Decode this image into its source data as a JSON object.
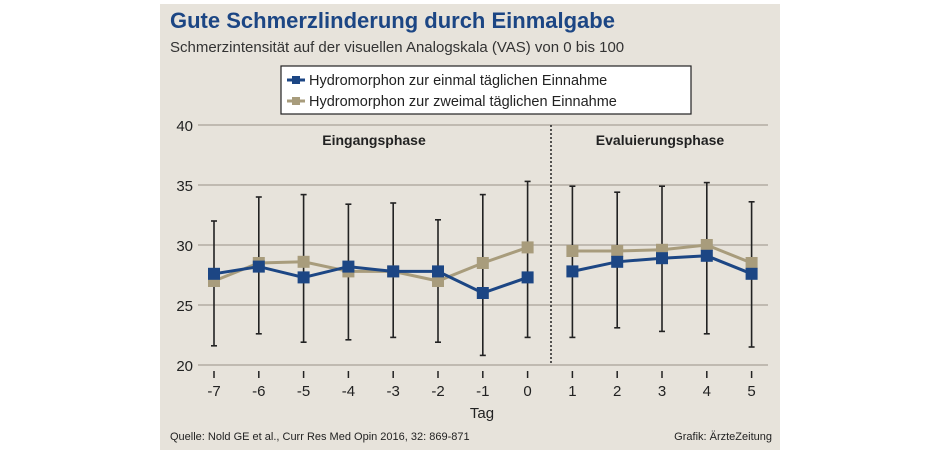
{
  "chart_data": {
    "type": "line",
    "title": "Gute Schmerzlinderung durch Einmalgabe",
    "subtitle": "Schmerzintensität auf der visuellen Analogskala (VAS) von 0 bis 100",
    "xlabel": "Tag",
    "ylabel": "",
    "x": [
      -7,
      -6,
      -5,
      -4,
      -3,
      -2,
      -1,
      0,
      1,
      2,
      3,
      4,
      5
    ],
    "x_tick_labels": [
      "-7",
      "-6",
      "-5",
      "-4",
      "-3",
      "-2",
      "-1",
      "0",
      "1",
      "2",
      "3",
      "4",
      "5"
    ],
    "y_ticks": [
      20,
      25,
      30,
      35,
      40
    ],
    "y_tick_labels": [
      "20",
      "25",
      "30",
      "35",
      "40"
    ],
    "ylim": [
      20,
      40
    ],
    "grid": true,
    "legend_position": "top-center",
    "phases": [
      {
        "label": "Eingangsphase",
        "from": -7,
        "to": 0
      },
      {
        "label": "Evaluierungsphase",
        "from": 1,
        "to": 5
      }
    ],
    "series": [
      {
        "name": "Hydromorphon zur einmal täglichen Einnahme",
        "color": "#1c4684",
        "values": [
          27.6,
          28.2,
          27.3,
          28.2,
          27.8,
          27.8,
          26.0,
          27.3,
          27.8,
          28.6,
          28.9,
          29.1,
          27.6
        ]
      },
      {
        "name": "Hydromorphon zur zweimal täglichen Einnahme",
        "color": "#a89c7c",
        "values": [
          27.0,
          28.5,
          28.6,
          27.8,
          27.8,
          27.0,
          28.5,
          29.8,
          29.5,
          29.5,
          29.6,
          30.0,
          28.5
        ]
      }
    ],
    "error_bars": {
      "upper": [
        32.0,
        34.0,
        34.2,
        33.4,
        33.5,
        32.1,
        34.2,
        35.3,
        34.9,
        34.4,
        34.9,
        35.2,
        33.6
      ],
      "lower": [
        21.6,
        22.6,
        21.9,
        22.1,
        22.3,
        21.9,
        20.8,
        22.3,
        22.3,
        23.1,
        22.8,
        22.6,
        21.5
      ]
    },
    "source": "Quelle: Nold GE et al., Curr Res Med Opin 2016, 32: 869-871",
    "credit": "Grafik: ÄrzteZeitung"
  }
}
